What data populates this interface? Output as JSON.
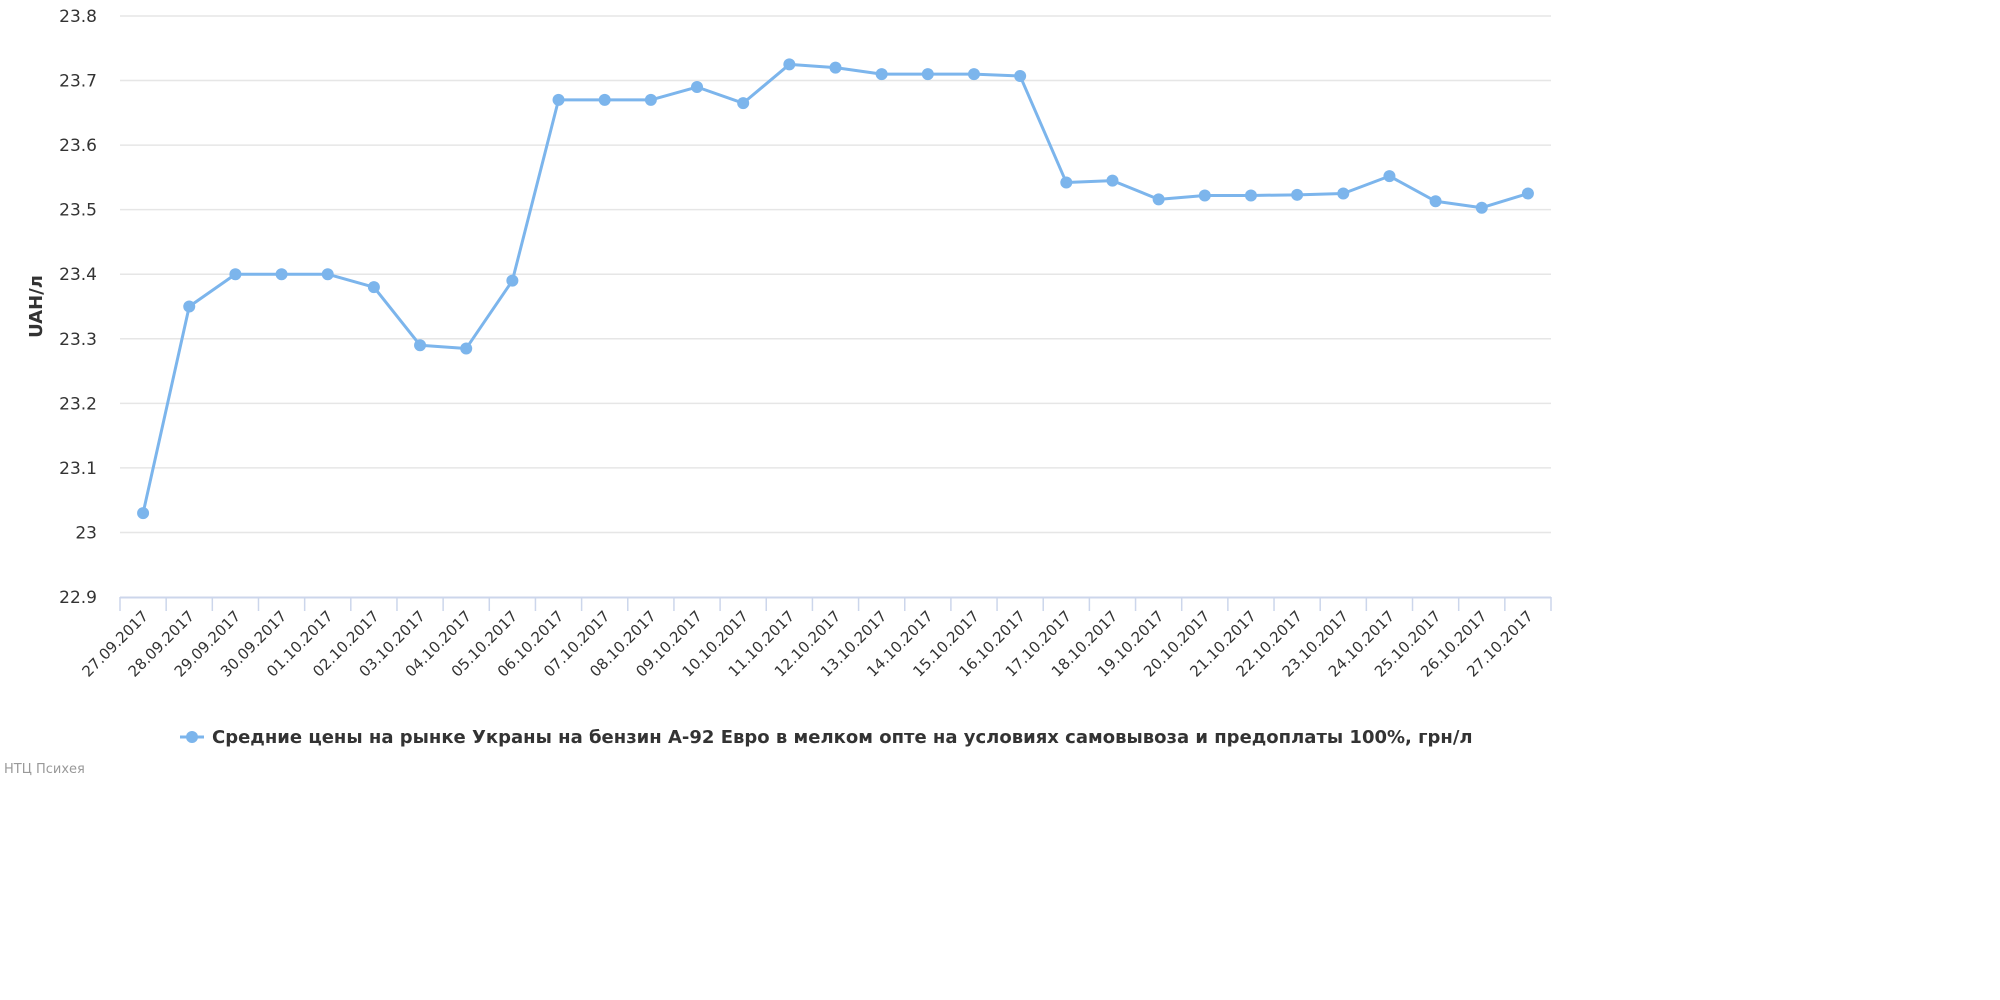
{
  "chart_data": {
    "type": "line",
    "ylabel": "UAH/л",
    "ylim": [
      22.9,
      23.8
    ],
    "yticks": [
      "22.9",
      "23",
      "23.1",
      "23.2",
      "23.3",
      "23.4",
      "23.5",
      "23.6",
      "23.7",
      "23.8"
    ],
    "grid": true,
    "legend_position": "bottom",
    "categories": [
      "27.09.2017",
      "28.09.2017",
      "29.09.2017",
      "30.09.2017",
      "01.10.2017",
      "02.10.2017",
      "03.10.2017",
      "04.10.2017",
      "05.10.2017",
      "06.10.2017",
      "07.10.2017",
      "08.10.2017",
      "09.10.2017",
      "10.10.2017",
      "11.10.2017",
      "12.10.2017",
      "13.10.2017",
      "14.10.2017",
      "15.10.2017",
      "16.10.2017",
      "17.10.2017",
      "18.10.2017",
      "19.10.2017",
      "20.10.2017",
      "21.10.2017",
      "22.10.2017",
      "23.10.2017",
      "24.10.2017",
      "25.10.2017",
      "26.10.2017",
      "27.10.2017"
    ],
    "series": [
      {
        "name": "Средние цены на рынке Украны на бензин А-92 Евро в мелком опте на условиях самовывоза и предоплаты 100%, грн/л",
        "color": "#7cb5ec",
        "values": [
          23.03,
          23.35,
          23.4,
          23.4,
          23.4,
          23.38,
          23.29,
          23.285,
          23.39,
          23.67,
          23.67,
          23.67,
          23.69,
          23.665,
          23.725,
          23.72,
          23.71,
          23.71,
          23.71,
          23.707,
          23.542,
          23.545,
          23.516,
          23.522,
          23.522,
          23.523,
          23.525,
          23.552,
          23.513,
          23.503,
          23.525
        ]
      }
    ]
  },
  "credit": "НТЦ Психея"
}
